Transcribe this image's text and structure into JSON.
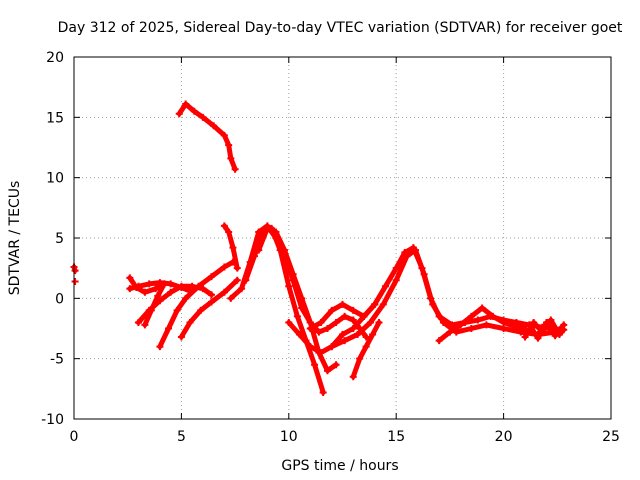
{
  "chart_data": {
    "type": "scatter",
    "title": "Day 312 of 2025, Sidereal Day-to-day VTEC variation (SDTVAR) for receiver goet",
    "xlabel": "GPS time / hours",
    "ylabel": "SDTVAR / TECUs",
    "xlim": [
      0,
      25
    ],
    "ylim": [
      -10,
      20
    ],
    "xticks": [
      0,
      5,
      10,
      15,
      20,
      25
    ],
    "yticks": [
      -10,
      -5,
      0,
      5,
      10,
      15,
      20
    ],
    "grid": true,
    "marker": "plus",
    "color": "#ff0000",
    "series": [
      {
        "name": "pt-a",
        "x": [
          0.0,
          0.05
        ],
        "y": [
          2.6,
          2.3
        ]
      },
      {
        "name": "pt-b",
        "x": [
          0.05
        ],
        "y": [
          1.4
        ]
      },
      {
        "name": "s1",
        "x": [
          4.9,
          5.2,
          5.6,
          6.0,
          6.5,
          7.0,
          7.2,
          7.3,
          7.5
        ],
        "y": [
          15.3,
          16.1,
          15.5,
          15.0,
          14.3,
          13.5,
          12.7,
          11.6,
          10.7
        ]
      },
      {
        "name": "s2",
        "x": [
          2.6,
          3.0,
          3.5,
          4.0,
          4.5,
          5.0,
          5.4
        ],
        "y": [
          0.8,
          1.0,
          1.2,
          1.3,
          1.2,
          0.9,
          0.6
        ]
      },
      {
        "name": "s3",
        "x": [
          2.6,
          2.9,
          3.3,
          3.8,
          4.2
        ],
        "y": [
          1.7,
          0.9,
          0.5,
          0.8,
          1.2
        ]
      },
      {
        "name": "s4",
        "x": [
          3.0,
          3.5,
          4.0,
          4.5,
          5.0,
          5.5,
          6.0,
          6.4
        ],
        "y": [
          -2.0,
          -1.0,
          -0.2,
          0.5,
          1.0,
          1.0,
          0.8,
          0.3
        ]
      },
      {
        "name": "s5",
        "x": [
          3.3,
          3.6,
          3.9,
          4.2
        ],
        "y": [
          -2.2,
          -1.0,
          0.2,
          1.2
        ]
      },
      {
        "name": "s6",
        "x": [
          4.0,
          4.4,
          4.8,
          5.2,
          5.8,
          6.4,
          7.0,
          7.4
        ],
        "y": [
          -4.0,
          -2.5,
          -1.0,
          0.0,
          1.0,
          1.8,
          2.6,
          3.0
        ]
      },
      {
        "name": "s7",
        "x": [
          5.0,
          5.4,
          5.9,
          6.4,
          7.0,
          7.6
        ],
        "y": [
          -3.2,
          -2.0,
          -1.0,
          -0.3,
          0.5,
          1.5
        ]
      },
      {
        "name": "s8",
        "x": [
          7.0,
          7.2,
          7.4,
          7.6
        ],
        "y": [
          6.0,
          5.5,
          4.2,
          2.5
        ]
      },
      {
        "name": "s9",
        "x": [
          7.3,
          7.8,
          8.2,
          8.6,
          9.0,
          9.4,
          9.8,
          10.2,
          10.6,
          11.0,
          11.4,
          11.8,
          12.2,
          12.6,
          13.0,
          13.3,
          13.6
        ],
        "y": [
          0.0,
          0.8,
          3.0,
          5.5,
          6.0,
          5.0,
          3.5,
          1.5,
          -0.8,
          -2.0,
          -2.8,
          -2.5,
          -2.0,
          -1.5,
          -1.8,
          -2.5,
          -3.2
        ]
      },
      {
        "name": "s10",
        "x": [
          8.0,
          8.4,
          8.8,
          9.2,
          9.6,
          10.0,
          10.4,
          10.8,
          11.2,
          11.6
        ],
        "y": [
          1.5,
          3.5,
          5.5,
          5.8,
          4.0,
          1.0,
          -1.5,
          -3.5,
          -5.5,
          -7.8
        ]
      },
      {
        "name": "s11",
        "x": [
          8.6,
          9.0,
          9.4,
          9.8,
          10.2,
          10.6,
          11.0,
          11.4,
          11.8,
          12.2
        ],
        "y": [
          4.0,
          5.8,
          5.5,
          4.0,
          2.0,
          0.0,
          -2.0,
          -4.5,
          -6.0,
          -5.5
        ]
      },
      {
        "name": "s12",
        "x": [
          10.0,
          10.5,
          11.0,
          11.5,
          12.0,
          12.5,
          13.0,
          13.5,
          14.0
        ],
        "y": [
          -2.0,
          -3.0,
          -4.0,
          -4.5,
          -4.0,
          -3.0,
          -2.5,
          -1.5,
          -0.5
        ]
      },
      {
        "name": "s13",
        "x": [
          11.0,
          11.5,
          12.0,
          12.5,
          13.0,
          13.5,
          14.0,
          14.5,
          15.0,
          15.4,
          15.8,
          16.2,
          16.6,
          17.0,
          17.6,
          18.2,
          18.8,
          19.4,
          20.0,
          20.6,
          21.2,
          21.8,
          22.6
        ],
        "y": [
          -2.5,
          -2.0,
          -1.0,
          -0.5,
          -1.0,
          -1.5,
          -0.5,
          1.0,
          2.5,
          3.8,
          4.2,
          2.5,
          0.0,
          -1.5,
          -2.2,
          -2.0,
          -1.8,
          -1.5,
          -1.8,
          -2.0,
          -2.2,
          -2.4,
          -2.6
        ]
      },
      {
        "name": "s14",
        "x": [
          12.0,
          12.6,
          13.2,
          13.8,
          14.4,
          15.0,
          15.5,
          15.9,
          16.3,
          16.7,
          17.2,
          17.8,
          18.5,
          19.2,
          20.0,
          20.8,
          21.6,
          22.4
        ],
        "y": [
          -4.0,
          -3.5,
          -3.0,
          -2.0,
          -0.5,
          1.5,
          3.5,
          4.0,
          2.0,
          -0.5,
          -2.0,
          -2.8,
          -2.5,
          -2.2,
          -2.5,
          -2.8,
          -3.0,
          -2.8
        ]
      },
      {
        "name": "s15",
        "x": [
          13.0,
          13.3,
          13.6,
          13.9,
          14.2
        ],
        "y": [
          -6.5,
          -5.0,
          -4.0,
          -3.0,
          -2.0
        ]
      },
      {
        "name": "s16",
        "x": [
          17.0,
          17.5,
          18.0,
          18.5,
          19.0,
          19.5,
          20.0,
          20.5,
          21.0
        ],
        "y": [
          -3.5,
          -2.8,
          -2.2,
          -1.5,
          -0.8,
          -1.5,
          -2.0,
          -2.3,
          -2.5
        ]
      },
      {
        "name": "s17",
        "x": [
          21.0,
          21.4,
          21.8,
          22.2,
          22.6,
          22.8
        ],
        "y": [
          -3.2,
          -2.0,
          -2.8,
          -1.8,
          -3.0,
          -2.6
        ]
      },
      {
        "name": "s18",
        "x": [
          21.2,
          21.6,
          22.0,
          22.4,
          22.8
        ],
        "y": [
          -2.2,
          -3.3,
          -2.0,
          -3.1,
          -2.2
        ]
      }
    ]
  }
}
